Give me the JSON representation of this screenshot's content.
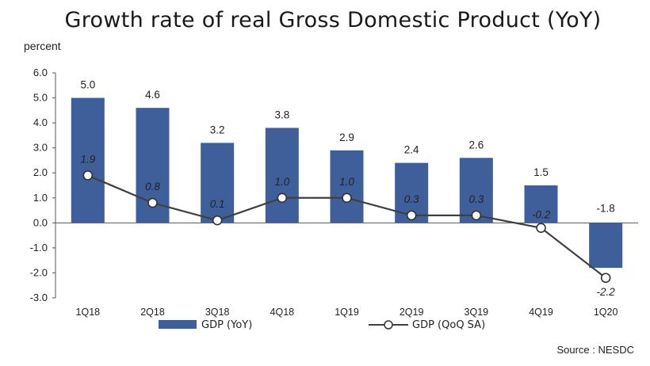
{
  "chart_data": {
    "type": "bar",
    "title": "Growth rate of real Gross Domestic Product (YoY)",
    "ylabel": "percent",
    "categories": [
      "1Q18",
      "2Q18",
      "3Q18",
      "4Q18",
      "1Q19",
      "2Q19",
      "3Q19",
      "4Q19",
      "1Q20"
    ],
    "ylim": [
      -3.0,
      6.0
    ],
    "yticks": [
      "6.0",
      "5.0",
      "4.0",
      "3.0",
      "2.0",
      "1.0",
      "0.0",
      "-1.0",
      "-2.0",
      "-3.0"
    ],
    "grid": false,
    "legend_position": "bottom",
    "series": [
      {
        "name": "GDP (YoY)",
        "type": "bar",
        "color": "#3e5f99",
        "values": [
          5.0,
          4.6,
          3.2,
          3.8,
          2.9,
          2.4,
          2.6,
          1.5,
          -1.8
        ],
        "labels": [
          "5.0",
          "4.6",
          "3.2",
          "3.8",
          "2.9",
          "2.4",
          "2.6",
          "1.5",
          "-1.8"
        ]
      },
      {
        "name": "GDP (QoQ SA)",
        "type": "line",
        "color": "#404040",
        "values": [
          1.9,
          0.8,
          0.1,
          1.0,
          1.0,
          0.3,
          0.3,
          -0.2,
          -2.2
        ],
        "labels": [
          "1.9",
          "0.8",
          "0.1",
          "1.0",
          "1.0",
          "0.3",
          "0.3",
          "-0.2",
          "-2.2"
        ]
      }
    ]
  },
  "source": "Source : NESDC"
}
